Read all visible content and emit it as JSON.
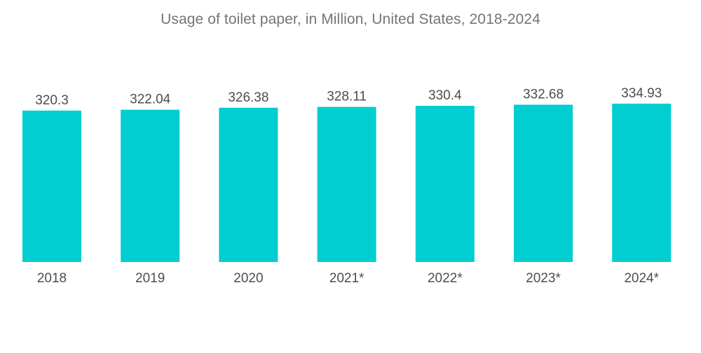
{
  "chart_data": {
    "type": "bar",
    "title": "Usage of toilet paper, in Million, United States, 2018-2024",
    "categories": [
      "2018",
      "2019",
      "2020",
      "2021*",
      "2022*",
      "2023*",
      "2024*"
    ],
    "values": [
      320.3,
      322.04,
      326.38,
      328.11,
      330.4,
      332.68,
      334.93
    ],
    "value_labels": [
      "320.3",
      "322.04",
      "326.38",
      "328.11",
      "330.4",
      "332.68",
      "334.93"
    ],
    "xlabel": "",
    "ylabel": "",
    "ylim": [
      0,
      334.93
    ],
    "grid": false,
    "legend": "none",
    "bar_color": "#00CED1"
  }
}
